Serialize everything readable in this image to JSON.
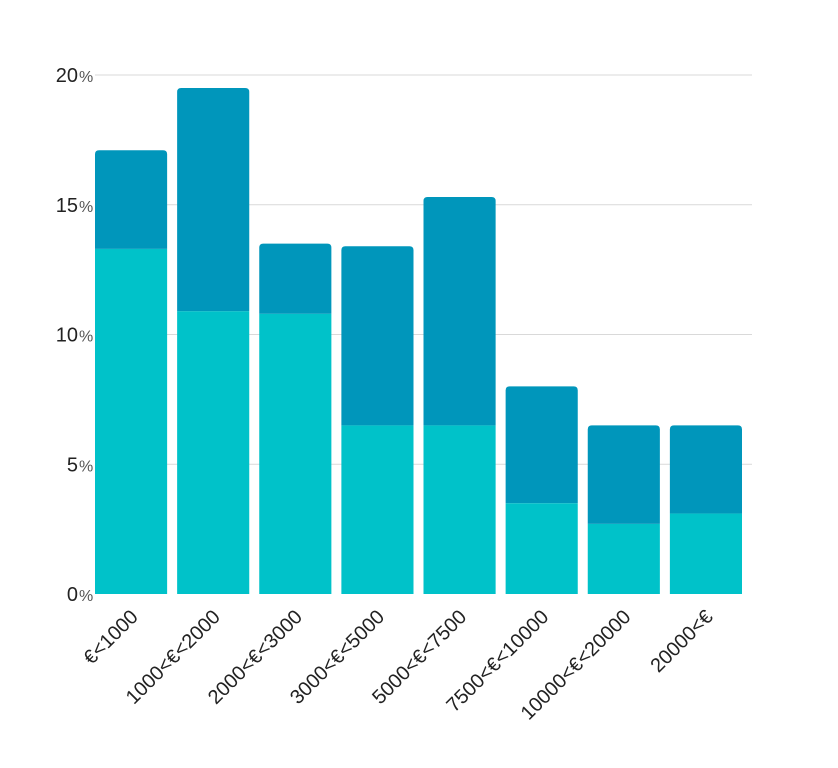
{
  "chart_data": {
    "type": "bar",
    "stacked": true,
    "categories": [
      "€<1000",
      "1000<€<2000",
      "2000<€<3000",
      "3000<€<5000",
      "5000<€<7500",
      "7500<€<10000",
      "10000<€<20000",
      "20000<€"
    ],
    "series": [
      {
        "values": [
          13.3,
          10.9,
          10.8,
          6.5,
          6.5,
          3.5,
          2.7,
          3.1
        ],
        "color": "#00c2c9"
      },
      {
        "values": [
          3.8,
          8.6,
          2.7,
          6.9,
          8.8,
          4.5,
          3.8,
          3.4
        ],
        "color": "#0096bb"
      }
    ],
    "yticks": [
      "0",
      "5",
      "10",
      "15",
      "20"
    ],
    "ytick_unit": "%",
    "ylim": [
      0,
      20
    ],
    "grid": true,
    "title": "",
    "xlabel": "",
    "ylabel": ""
  }
}
